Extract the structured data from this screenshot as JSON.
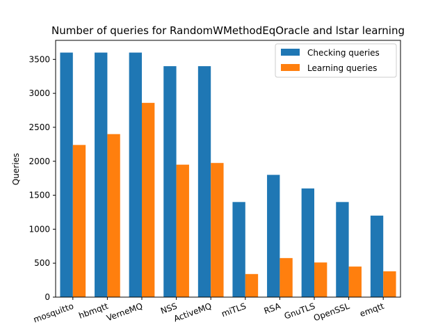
{
  "chart_data": {
    "type": "bar",
    "title": "Number of queries for RandomWMethodEqOracle and lstar learning",
    "xlabel": "",
    "ylabel": "Queries",
    "categories": [
      "mosquitto",
      "hbmqtt",
      "VerneMQ",
      "NSS",
      "ActiveMQ",
      "miTLS",
      "RSA",
      "GnuTLS",
      "OpenSSL",
      "emqtt"
    ],
    "series": [
      {
        "name": "Checking queries",
        "color": "#1f77b4",
        "values": [
          3600,
          3600,
          3600,
          3400,
          3400,
          1400,
          1800,
          1600,
          1400,
          1200
        ]
      },
      {
        "name": "Learning queries",
        "color": "#ff7f0e",
        "values": [
          2240,
          2400,
          2860,
          1950,
          1975,
          340,
          575,
          510,
          450,
          380
        ]
      }
    ],
    "ylim": [
      0,
      3780
    ],
    "yticks": [
      0,
      500,
      1000,
      1500,
      2000,
      2500,
      3000,
      3500
    ],
    "legend": "top-right",
    "grid": false
  }
}
